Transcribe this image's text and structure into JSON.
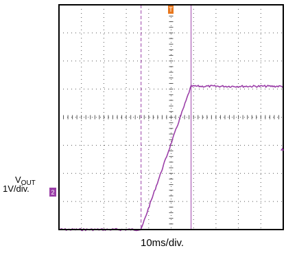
{
  "chart_data": {
    "type": "line",
    "title": "",
    "xlabel": "10ms/div.",
    "ylabel": "",
    "channel": {
      "name": "V",
      "subscript": "OUT",
      "scale": "1V/div.",
      "marker": "2"
    },
    "trigger_marker": "T",
    "divisions": {
      "x": 10,
      "y": 8
    },
    "trace_color": "#9b3fa8",
    "trigger_color": "#e8771d",
    "xlim": [
      0,
      100
    ],
    "ylim": [
      0,
      8
    ],
    "x_unit": "ms",
    "y_unit": "V",
    "cursors_x": [
      36.6,
      58.9
    ],
    "trace": [
      {
        "x": 0.0,
        "y": 0.0
      },
      {
        "x": 36.6,
        "y": 0.0
      },
      {
        "x": 58.9,
        "y": 5.1
      },
      {
        "x": 100.0,
        "y": 5.1
      }
    ]
  }
}
